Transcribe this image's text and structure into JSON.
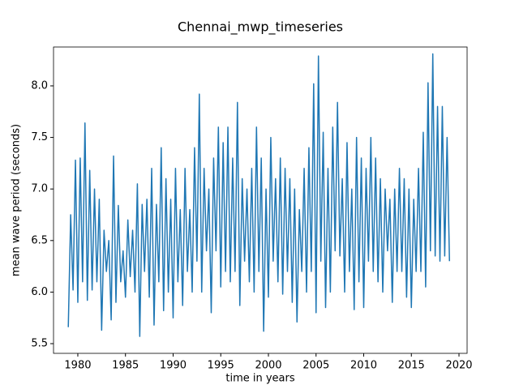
{
  "chart_data": {
    "type": "line",
    "title": "Chennai_mwp_timeseries",
    "x_label": "time in years",
    "y_label": "mean wave period (seconds)",
    "xlim": [
      1977.45,
      2020.85
    ],
    "ylim": [
      5.406,
      8.377
    ],
    "xticks": [
      1980,
      1985,
      1990,
      1995,
      2000,
      2005,
      2010,
      2015,
      2020
    ],
    "yticks": [
      5.5,
      {
        "value": 6,
        "label": "6.0"
      },
      6.5,
      {
        "value": 7,
        "label": "7.0"
      },
      7.5,
      {
        "value": 8,
        "label": "8.0"
      }
    ],
    "x": [
      1979,
      1979.25,
      1979.5,
      1979.75,
      1980,
      1980.25,
      1980.5,
      1980.75,
      1981,
      1981.25,
      1981.5,
      1981.75,
      1982,
      1982.25,
      1982.5,
      1982.75,
      1983,
      1983.25,
      1983.5,
      1983.75,
      1984,
      1984.25,
      1984.5,
      1984.75,
      1985,
      1985.25,
      1985.5,
      1985.75,
      1986,
      1986.25,
      1986.5,
      1986.75,
      1987,
      1987.25,
      1987.5,
      1987.75,
      1988,
      1988.25,
      1988.5,
      1988.75,
      1989,
      1989.25,
      1989.5,
      1989.75,
      1990,
      1990.25,
      1990.5,
      1990.75,
      1991,
      1991.25,
      1991.5,
      1991.75,
      1992,
      1992.25,
      1992.5,
      1992.75,
      1993,
      1993.25,
      1993.5,
      1993.75,
      1994,
      1994.25,
      1994.5,
      1994.75,
      1995,
      1995.25,
      1995.5,
      1995.75,
      1996,
      1996.25,
      1996.5,
      1996.75,
      1997,
      1997.25,
      1997.5,
      1997.75,
      1998,
      1998.25,
      1998.5,
      1998.75,
      1999,
      1999.25,
      1999.5,
      1999.75,
      2000,
      2000.25,
      2000.5,
      2000.75,
      2001,
      2001.25,
      2001.5,
      2001.75,
      2002,
      2002.25,
      2002.5,
      2002.75,
      2003,
      2003.25,
      2003.5,
      2003.75,
      2004,
      2004.25,
      2004.5,
      2004.75,
      2005,
      2005.25,
      2005.5,
      2005.75,
      2006,
      2006.25,
      2006.5,
      2006.75,
      2007,
      2007.25,
      2007.5,
      2007.75,
      2008,
      2008.25,
      2008.5,
      2008.75,
      2009,
      2009.25,
      2009.5,
      2009.75,
      2010,
      2010.25,
      2010.5,
      2010.75,
      2011,
      2011.25,
      2011.5,
      2011.75,
      2012,
      2012.25,
      2012.5,
      2012.75,
      2013,
      2013.25,
      2013.5,
      2013.75,
      2014,
      2014.25,
      2014.5,
      2014.75,
      2015,
      2015.25,
      2015.5,
      2015.75,
      2016,
      2016.25,
      2016.5,
      2016.75,
      2017,
      2017.25,
      2017.5,
      2017.75,
      2018,
      2018.25,
      2018.5,
      2018.75,
      2019
    ],
    "series": [
      {
        "color": "#1f77b4",
        "values": [
          5.66,
          6.75,
          6.02,
          7.28,
          5.9,
          7.3,
          6.1,
          7.64,
          5.92,
          7.18,
          6.02,
          7.0,
          6.1,
          6.9,
          5.63,
          6.6,
          6.2,
          6.5,
          5.73,
          7.32,
          5.9,
          6.84,
          6.1,
          6.4,
          5.95,
          6.7,
          6.15,
          6.6,
          6.0,
          7.05,
          5.57,
          6.85,
          6.2,
          6.9,
          5.95,
          7.2,
          5.68,
          6.85,
          6.1,
          7.4,
          5.82,
          7.1,
          6.0,
          6.9,
          5.75,
          7.2,
          6.1,
          6.8,
          5.87,
          7.2,
          6.2,
          6.8,
          6.0,
          7.4,
          6.3,
          7.92,
          6.0,
          7.2,
          6.4,
          7.0,
          5.8,
          7.3,
          6.4,
          7.6,
          6.05,
          7.45,
          6.2,
          7.6,
          6.1,
          7.3,
          6.2,
          7.84,
          5.87,
          7.1,
          6.3,
          7.0,
          6.1,
          7.2,
          6.0,
          7.6,
          6.2,
          7.3,
          5.62,
          7.0,
          5.95,
          7.5,
          6.3,
          7.1,
          6.1,
          7.3,
          5.98,
          7.2,
          6.2,
          7.1,
          5.9,
          7.0,
          5.71,
          6.8,
          6.2,
          7.2,
          6.0,
          7.4,
          6.2,
          8.02,
          5.8,
          8.29,
          6.3,
          7.55,
          5.85,
          7.2,
          6.0,
          7.6,
          6.4,
          7.84,
          6.35,
          7.1,
          6.0,
          7.45,
          6.2,
          7.0,
          5.83,
          7.5,
          6.1,
          7.3,
          5.85,
          7.2,
          6.3,
          7.5,
          6.2,
          7.3,
          6.1,
          7.1,
          6.0,
          7.0,
          6.4,
          6.9,
          5.9,
          7.0,
          6.2,
          7.2,
          6.2,
          7.1,
          5.95,
          7.0,
          5.85,
          6.9,
          6.2,
          7.2,
          6.2,
          7.55,
          6.05,
          8.03,
          6.4,
          8.31,
          6.35,
          7.8,
          6.3,
          7.8,
          6.35,
          7.5,
          6.3
        ]
      }
    ]
  }
}
